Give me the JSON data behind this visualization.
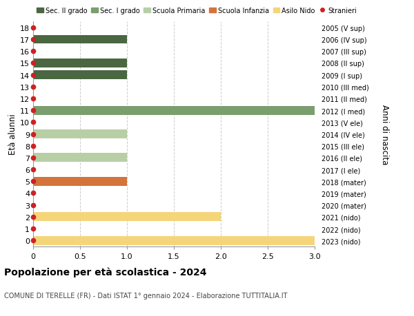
{
  "ages": [
    18,
    17,
    16,
    15,
    14,
    13,
    12,
    11,
    10,
    9,
    8,
    7,
    6,
    5,
    4,
    3,
    2,
    1,
    0
  ],
  "right_labels": [
    "2005 (V sup)",
    "2006 (IV sup)",
    "2007 (III sup)",
    "2008 (II sup)",
    "2009 (I sup)",
    "2010 (III med)",
    "2011 (II med)",
    "2012 (I med)",
    "2013 (V ele)",
    "2014 (IV ele)",
    "2015 (III ele)",
    "2016 (II ele)",
    "2017 (I ele)",
    "2018 (mater)",
    "2019 (mater)",
    "2020 (mater)",
    "2021 (nido)",
    "2022 (nido)",
    "2023 (nido)"
  ],
  "bars": [
    {
      "age": 18,
      "value": 0,
      "color": "#4a6741"
    },
    {
      "age": 17,
      "value": 1,
      "color": "#4a6741"
    },
    {
      "age": 16,
      "value": 0,
      "color": "#4a6741"
    },
    {
      "age": 15,
      "value": 1,
      "color": "#4a6741"
    },
    {
      "age": 14,
      "value": 1,
      "color": "#4a6741"
    },
    {
      "age": 13,
      "value": 0,
      "color": "#7a9e6e"
    },
    {
      "age": 12,
      "value": 0,
      "color": "#7a9e6e"
    },
    {
      "age": 11,
      "value": 3,
      "color": "#7a9e6e"
    },
    {
      "age": 10,
      "value": 0,
      "color": "#b8cfa6"
    },
    {
      "age": 9,
      "value": 1,
      "color": "#b8cfa6"
    },
    {
      "age": 8,
      "value": 0,
      "color": "#b8cfa6"
    },
    {
      "age": 7,
      "value": 1,
      "color": "#b8cfa6"
    },
    {
      "age": 6,
      "value": 0,
      "color": "#b8cfa6"
    },
    {
      "age": 5,
      "value": 1,
      "color": "#d4733a"
    },
    {
      "age": 4,
      "value": 0,
      "color": "#d4733a"
    },
    {
      "age": 3,
      "value": 0,
      "color": "#d4733a"
    },
    {
      "age": 2,
      "value": 2,
      "color": "#f5d57a"
    },
    {
      "age": 1,
      "value": 0,
      "color": "#f5d57a"
    },
    {
      "age": 0,
      "value": 3,
      "color": "#f5d57a"
    }
  ],
  "stranieri_ages": [
    18,
    17,
    16,
    15,
    14,
    13,
    12,
    11,
    10,
    9,
    8,
    7,
    6,
    5,
    4,
    3,
    2,
    1,
    0
  ],
  "legend_entries": [
    {
      "label": "Sec. II grado",
      "color": "#4a6741",
      "type": "patch"
    },
    {
      "label": "Sec. I grado",
      "color": "#7a9e6e",
      "type": "patch"
    },
    {
      "label": "Scuola Primaria",
      "color": "#b8cfa6",
      "type": "patch"
    },
    {
      "label": "Scuola Infanzia",
      "color": "#d4733a",
      "type": "patch"
    },
    {
      "label": "Asilo Nido",
      "color": "#f5d57a",
      "type": "patch"
    },
    {
      "label": "Stranieri",
      "color": "#cc2222",
      "type": "circle"
    }
  ],
  "ylabel_left": "Età alunni",
  "ylabel_right": "Anni di nascita",
  "title": "Popolazione per età scolastica - 2024",
  "subtitle": "COMUNE DI TERELLE (FR) - Dati ISTAT 1° gennaio 2024 - Elaborazione TUTTITALIA.IT",
  "xlim": [
    0,
    3.0
  ],
  "xticks": [
    0,
    0.5,
    1.0,
    1.5,
    2.0,
    2.5,
    3.0
  ],
  "bg_color": "#ffffff",
  "grid_color": "#cccccc",
  "bar_height": 0.75,
  "stranieri_color": "#cc2222",
  "stranieri_size": 4.5
}
